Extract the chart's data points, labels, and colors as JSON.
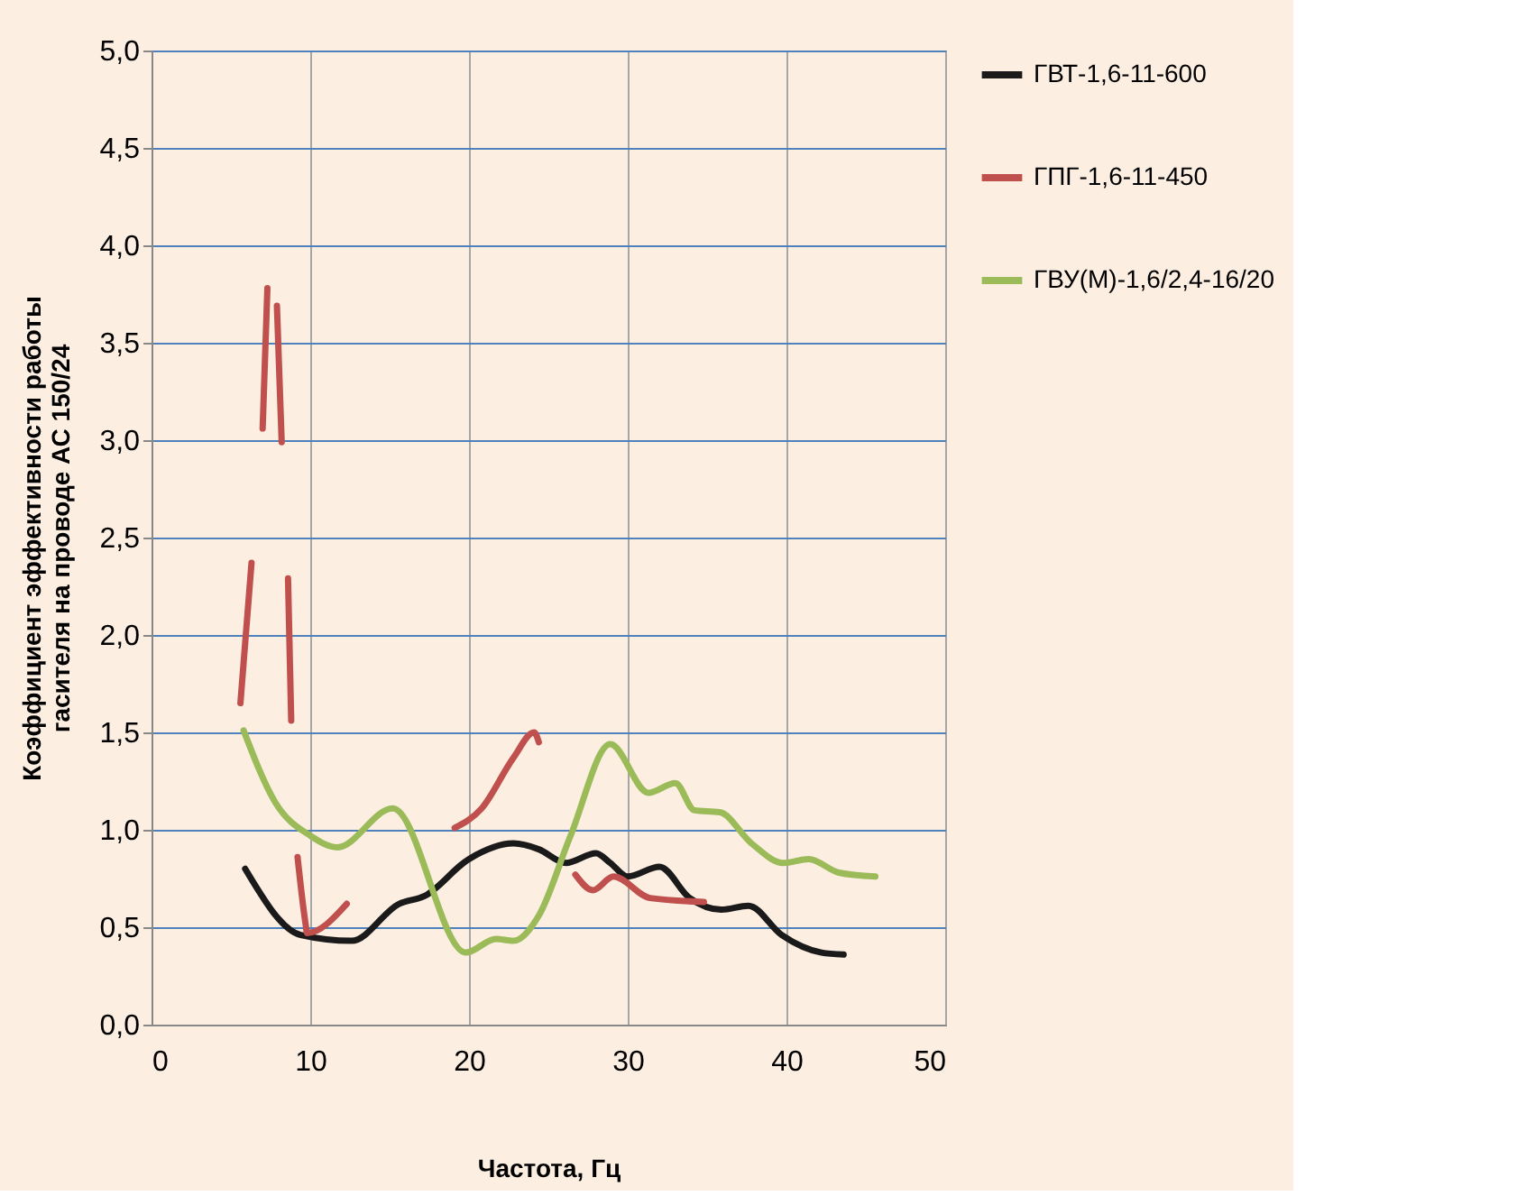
{
  "chart_data": {
    "type": "line",
    "xlabel": "Частота, Гц",
    "ylabel": "Коэффициент эффективности работы гасителя на проводе АС 150/24",
    "xlim": [
      0,
      50
    ],
    "xticks": [
      0,
      10,
      20,
      30,
      40,
      50
    ],
    "ylim": [
      0,
      5
    ],
    "yticks": [
      {
        "value": 0,
        "label": "0,0"
      },
      {
        "value": 0.5,
        "label": "0,5"
      },
      {
        "value": 1,
        "label": "1,0"
      },
      {
        "value": 1.5,
        "label": "1,5"
      },
      {
        "value": 2,
        "label": "2,0"
      },
      {
        "value": 2.5,
        "label": "2,5"
      },
      {
        "value": 3,
        "label": "3,0"
      },
      {
        "value": 3.5,
        "label": "3,5"
      },
      {
        "value": 4,
        "label": "4,0"
      },
      {
        "value": 4.5,
        "label": "4,5"
      },
      {
        "value": 5,
        "label": "5,0"
      }
    ],
    "grid": true,
    "legend": "right",
    "marker": "none",
    "line_style": "solid",
    "series": [
      {
        "name": "ГВТ-1,6-11-600",
        "color": "#1a1a1a",
        "x": [
          5.9,
          9.4,
          12.6,
          15.6,
          17.2,
          20,
          22.8,
          24.4,
          26.1,
          28,
          28.9,
          30,
          32,
          33.9,
          35.9,
          37.6,
          39.7,
          42.2,
          43.6
        ],
        "values": [
          0.8,
          0.46,
          0.43,
          0.62,
          0.66,
          0.85,
          0.93,
          0.9,
          0.83,
          0.88,
          0.83,
          0.76,
          0.81,
          0.65,
          0.59,
          0.61,
          0.46,
          0.37,
          0.36
        ]
      },
      {
        "name": "ГПГ-1,6-11-450",
        "color": "#c0504d",
        "x": [
          5.6,
          6.3,
          6.6,
          7.0,
          7.3,
          7.6,
          7.9,
          8.2,
          8.4,
          8.6,
          8.8,
          9.0,
          9.2,
          9.7,
          9.8,
          12.3,
          15,
          19.1,
          20.8,
          22.8,
          24.1,
          24.4,
          25.5,
          26.7,
          27.8,
          29.1,
          31.4,
          34.8
        ],
        "values": [
          1.65,
          2.37,
          null,
          3.06,
          3.78,
          null,
          3.69,
          2.99,
          null,
          2.29,
          1.56,
          null,
          0.86,
          0.52,
          0.47,
          0.62,
          null,
          1.01,
          1.11,
          1.37,
          1.5,
          1.45,
          null,
          0.77,
          0.69,
          0.76,
          0.65,
          0.63
        ]
      },
      {
        "name": "ГВУ(М)-1,6/2,4-16/20",
        "color": "#9bbb59",
        "x": [
          5.8,
          7.8,
          10,
          11.7,
          15.2,
          19.8,
          21.7,
          22.8,
          24.4,
          26.4,
          28.9,
          31.3,
          33,
          34.2,
          35.8,
          37.8,
          39.8,
          41.4,
          43.3,
          45.6
        ],
        "values": [
          1.51,
          1.14,
          0.97,
          0.91,
          1.11,
          0.37,
          0.44,
          0.43,
          0.56,
          0.97,
          1.44,
          1.19,
          1.24,
          1.1,
          1.09,
          0.93,
          0.83,
          0.85,
          0.78,
          0.76
        ]
      }
    ]
  }
}
